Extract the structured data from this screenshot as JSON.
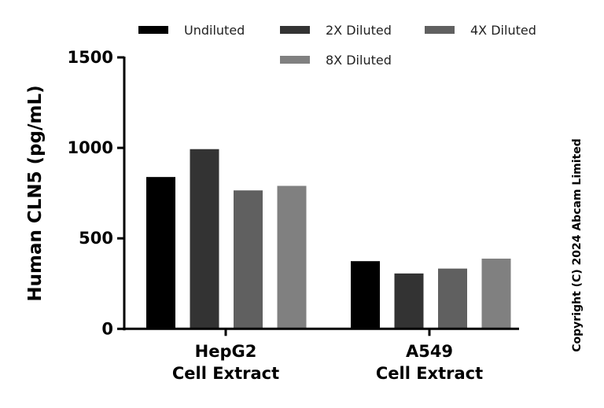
{
  "chart_data": {
    "type": "bar",
    "title": "",
    "xlabel": "",
    "ylabel": "Human CLN5 (pg/mL)",
    "ylim": [
      0,
      1500
    ],
    "yticks": [
      0,
      500,
      1000,
      1500
    ],
    "categories": [
      [
        "HepG2",
        "Cell Extract"
      ],
      [
        "A549",
        "Cell Extract"
      ]
    ],
    "series": [
      {
        "name": "Undiluted",
        "color": "#000000",
        "values": [
          839,
          374
        ]
      },
      {
        "name": "2X Diluted",
        "color": "#333333",
        "values": [
          993,
          306
        ]
      },
      {
        "name": "4X Diluted",
        "color": "#606060",
        "values": [
          765,
          333
        ]
      },
      {
        "name": "8X Diluted",
        "color": "#808080",
        "values": [
          790,
          388
        ]
      }
    ],
    "legend_position": "top",
    "grid": false
  },
  "copyright": "Copyright (C) 2024 Abcam Limited"
}
